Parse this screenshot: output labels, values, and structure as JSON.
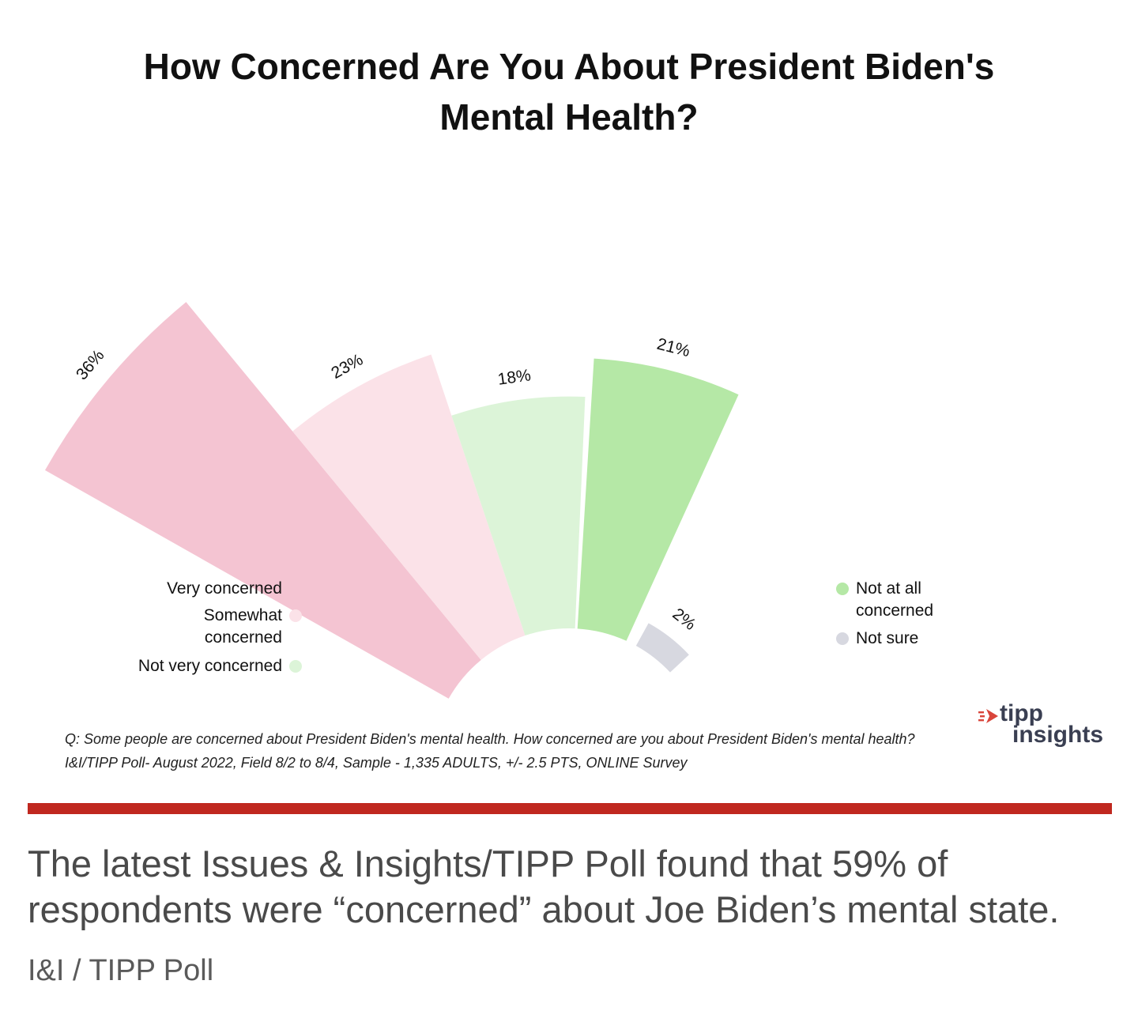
{
  "chart_data": {
    "type": "radial-bar",
    "title": "How Concerned Are You About President Biden's Mental Health?",
    "categories": [
      "Very concerned",
      "Somewhat concerned",
      "Not very concerned",
      "Not at all concerned",
      "Not sure"
    ],
    "values": [
      36,
      23,
      18,
      21,
      2
    ],
    "labels": [
      "36%",
      "23%",
      "18%",
      "21%",
      "2%"
    ],
    "colors": [
      "#f4c4d2",
      "#fbe2e8",
      "#dcf4d8",
      "#b5e8a6",
      "#d7d8e0"
    ],
    "legend": {
      "left": [
        {
          "label": "Very concerned",
          "color": "#f4c4d2"
        },
        {
          "label": "Somewhat concerned",
          "color": "#fbe2e8"
        },
        {
          "label": "Not very concerned",
          "color": "#dcf4d8"
        }
      ],
      "right": [
        {
          "label": "Not at all concerned",
          "color": "#b5e8a6"
        },
        {
          "label": "Not sure",
          "color": "#d7d8e0"
        }
      ]
    }
  },
  "footnote": "Q: Some people are concerned about President Biden's mental health. How concerned are you about President Biden's mental health? I&I/TIPP Poll- August 2022, Field 8/2 to 8/4, Sample - 1,335 ADULTS, +/- 2.5 PTS, ONLINE Survey",
  "brand": {
    "name_top": "tipp",
    "name_bottom": "insights",
    "arrow_color": "#d9453b",
    "text_color": "#3a3f52"
  },
  "divider_color": "#c0281f",
  "caption": "The latest Issues & Insights/TIPP Poll found that 59% of respondents were “concerned” about Joe Biden’s mental state.",
  "credit": "I&I / TIPP Poll"
}
